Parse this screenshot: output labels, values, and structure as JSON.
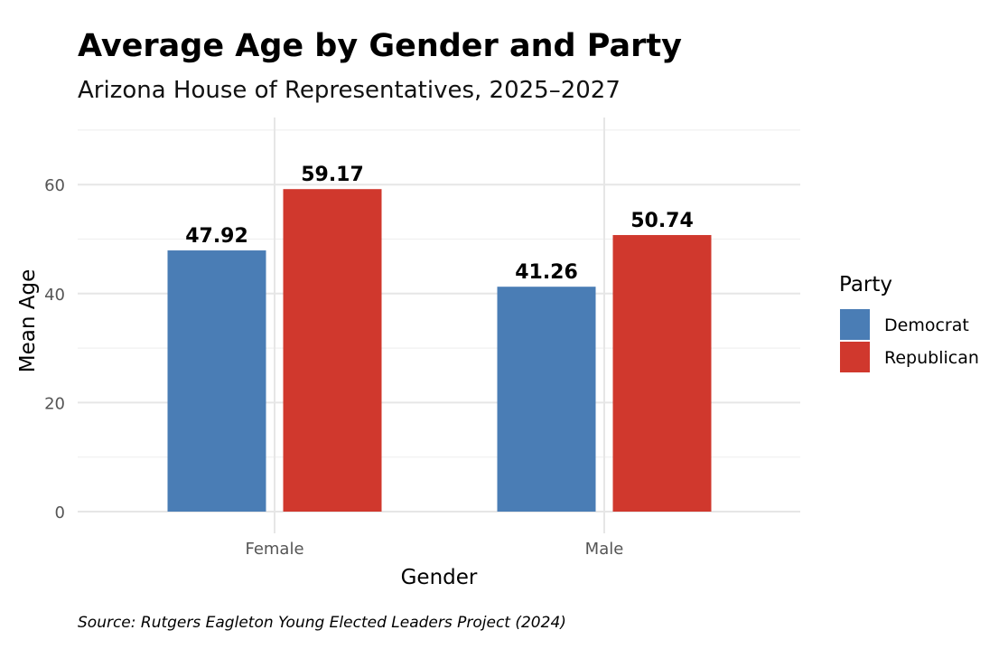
{
  "chart_data": {
    "type": "bar",
    "title": "Average Age by Gender and Party",
    "subtitle": "Arizona House of Representatives, 2025–2027",
    "xlabel": "Gender",
    "ylabel": "Mean Age",
    "caption": "Source: Rutgers Eagleton Young Elected Leaders Project (2024)",
    "categories": [
      "Female",
      "Male"
    ],
    "series": [
      {
        "name": "Democrat",
        "values": [
          47.92,
          41.26
        ],
        "color": "#4a7db5"
      },
      {
        "name": "Republican",
        "values": [
          59.17,
          50.74
        ],
        "color": "#d0382d"
      }
    ],
    "data_labels": [
      [
        "47.92",
        "41.26"
      ],
      [
        "59.17",
        "50.74"
      ]
    ],
    "yticks": [
      0,
      20,
      40,
      60
    ],
    "ylim": [
      0,
      70.5
    ],
    "grid": true,
    "legend": {
      "title": "Party",
      "placement": "right"
    }
  }
}
